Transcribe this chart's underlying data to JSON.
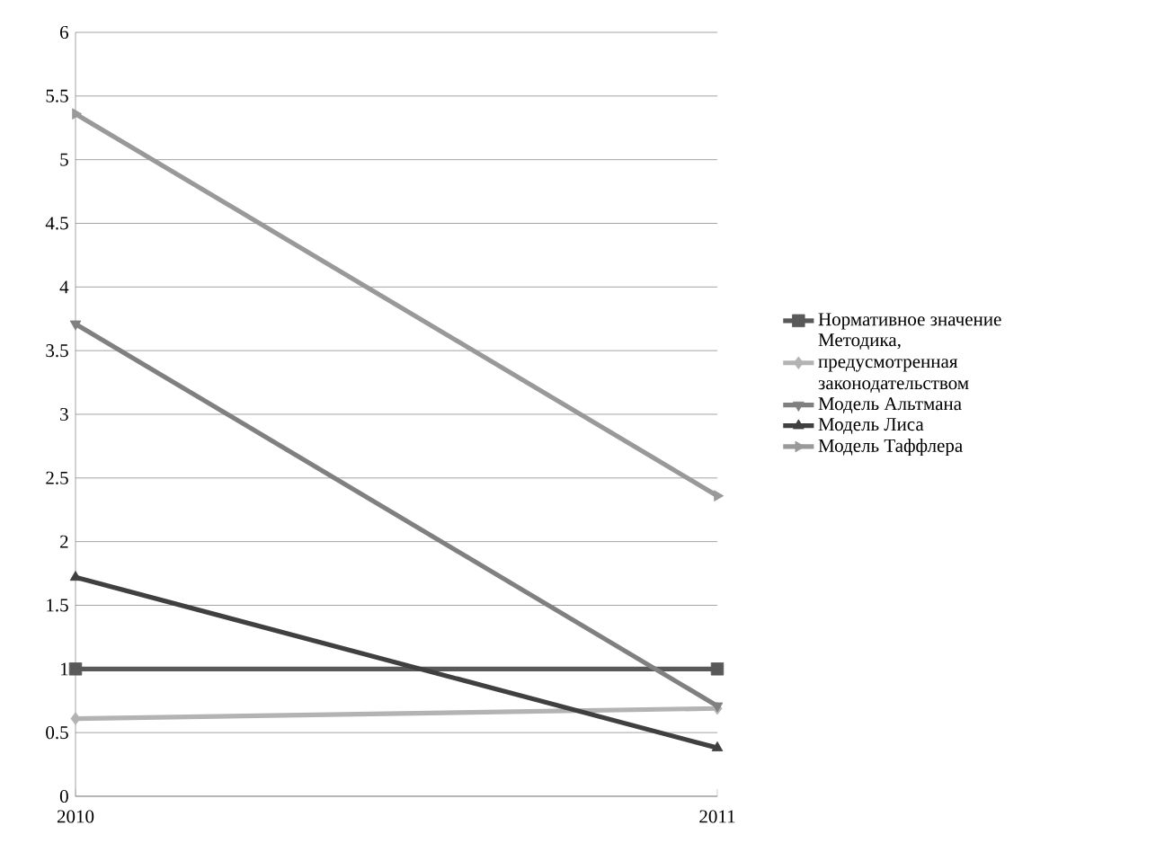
{
  "chart_data": {
    "type": "line",
    "x": [
      "2010",
      "2011"
    ],
    "series": [
      {
        "name": "Нормативное значение",
        "color": "#595959",
        "marker": "square",
        "values": [
          1,
          1
        ]
      },
      {
        "name": "Методика, предусмотренная законодательством",
        "color": "#b3b3b3",
        "marker": "diamond",
        "values": [
          0.61,
          0.69
        ]
      },
      {
        "name": "Модель Альтмана",
        "color": "#808080",
        "marker": "triangle-down",
        "values": [
          3.71,
          0.71
        ]
      },
      {
        "name": "Модель Лиса",
        "color": "#404040",
        "marker": "triangle",
        "values": [
          1.72,
          0.38
        ]
      },
      {
        "name": "Модель Таффлера",
        "color": "#999999",
        "marker": "triangle-right",
        "values": [
          5.36,
          2.36
        ]
      }
    ],
    "xlim": [
      "2010",
      "2011"
    ],
    "xticks": [
      "2010",
      "2011"
    ],
    "ylim": [
      0,
      6
    ],
    "yticks": [
      0,
      0.5,
      1,
      1.5,
      2,
      2.5,
      3,
      3.5,
      4,
      4.5,
      5,
      5.5,
      6
    ],
    "grid": "y",
    "legend": "right",
    "line_style": "solid"
  }
}
